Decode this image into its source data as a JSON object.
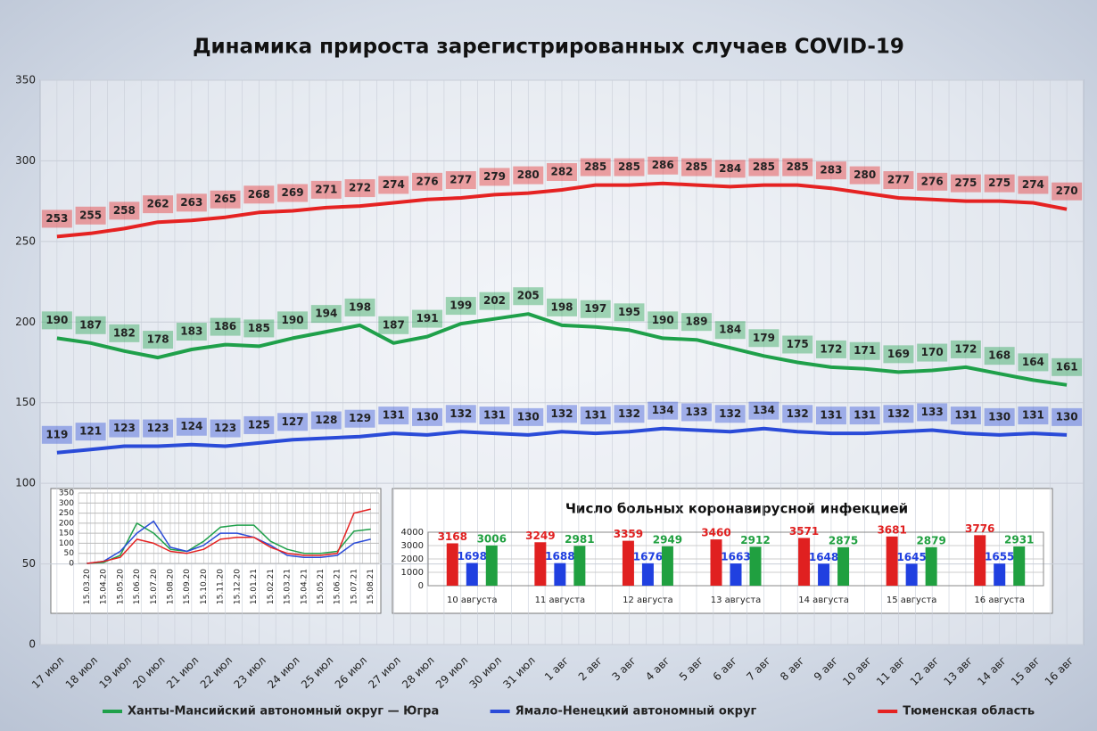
{
  "chart_data": [
    {
      "type": "line",
      "title": "Динамика прироста зарегистрированных случаев COVID-19",
      "categories": [
        "17 июл",
        "18 июл",
        "19 июл",
        "20 июл",
        "21 июл",
        "22 июл",
        "23 июл",
        "24 июл",
        "25 июл",
        "26 июл",
        "27 июл",
        "28 июл",
        "29 июл",
        "30 июл",
        "31 июл",
        "1 авг",
        "2 авг",
        "3 авг",
        "4 авг",
        "5 авг",
        "6 авг",
        "7 авг",
        "8 авг",
        "9 авг",
        "10 авг",
        "11 авг",
        "12 авг",
        "13 авг",
        "14 авг",
        "15 авг",
        "16 авг"
      ],
      "series": [
        {
          "name": "Ханты-Мансийский автономный округ — Югра",
          "color": "#1fa04a",
          "values": [
            190,
            187,
            182,
            178,
            183,
            186,
            185,
            190,
            194,
            198,
            187,
            191,
            199,
            202,
            205,
            198,
            197,
            195,
            190,
            189,
            184,
            179,
            175,
            172,
            171,
            169,
            170,
            172,
            168,
            164,
            161
          ]
        },
        {
          "name": "Ямало-Ненецкий автономный округ",
          "color": "#2a4bd8",
          "values": [
            119,
            121,
            123,
            123,
            124,
            123,
            125,
            127,
            128,
            129,
            131,
            130,
            132,
            131,
            130,
            132,
            131,
            132,
            134,
            133,
            132,
            134,
            132,
            131,
            131,
            132,
            133,
            131,
            130,
            131,
            130
          ]
        },
        {
          "name": "Тюменская область",
          "color": "#e52222",
          "values": [
            253,
            255,
            258,
            262,
            263,
            265,
            268,
            269,
            271,
            272,
            274,
            276,
            277,
            279,
            280,
            282,
            285,
            285,
            286,
            285,
            284,
            285,
            285,
            283,
            280,
            277,
            276,
            275,
            275,
            274,
            270
          ]
        }
      ],
      "ylim": [
        0,
        350
      ],
      "yticks": [
        0,
        50,
        100,
        150,
        200,
        250,
        300,
        350
      ],
      "grid": true,
      "legend": "bottom",
      "data_labels": true
    },
    {
      "type": "line",
      "categories": [
        "15.03.20",
        "15.04.20",
        "15.05.20",
        "15.06.20",
        "15.07.20",
        "15.08.20",
        "15.09.20",
        "15.10.20",
        "15.11.20",
        "15.12.20",
        "15.01.21",
        "15.02.21",
        "15.03.21",
        "15.04.21",
        "15.05.21",
        "15.06.21",
        "15.07.21",
        "15.08.21"
      ],
      "series": [
        {
          "color": "#1fa04a",
          "values": [
            0,
            5,
            40,
            200,
            150,
            70,
            60,
            110,
            180,
            190,
            190,
            110,
            70,
            50,
            50,
            60,
            160,
            170
          ]
        },
        {
          "color": "#2a4bd8",
          "values": [
            0,
            10,
            60,
            150,
            210,
            80,
            60,
            90,
            150,
            150,
            130,
            90,
            40,
            30,
            30,
            40,
            100,
            120
          ]
        },
        {
          "color": "#e52222",
          "values": [
            0,
            10,
            30,
            120,
            100,
            60,
            50,
            70,
            120,
            130,
            130,
            80,
            50,
            40,
            40,
            50,
            250,
            270
          ]
        }
      ],
      "ylim": [
        0,
        350
      ],
      "yticks": [
        0,
        50,
        100,
        150,
        200,
        250,
        300,
        350
      ],
      "grid": true
    },
    {
      "type": "bar",
      "title": "Число больных коронавирусной инфекцией",
      "categories": [
        "10 августа",
        "11 августа",
        "12 августа",
        "13 августа",
        "14 августа",
        "15 августа",
        "16 августа"
      ],
      "series": [
        {
          "color": "#e02020",
          "values": [
            3168,
            3249,
            3359,
            3460,
            3571,
            3681,
            3776
          ]
        },
        {
          "color": "#2040e0",
          "values": [
            1698,
            1688,
            1676,
            1663,
            1648,
            1645,
            1655
          ]
        },
        {
          "color": "#20a040",
          "values": [
            3006,
            2981,
            2949,
            2912,
            2875,
            2879,
            2931
          ]
        }
      ],
      "ylim": [
        0,
        4000
      ],
      "yticks": [
        0,
        1000,
        2000,
        3000,
        4000
      ],
      "grid": true,
      "data_labels": true
    }
  ]
}
